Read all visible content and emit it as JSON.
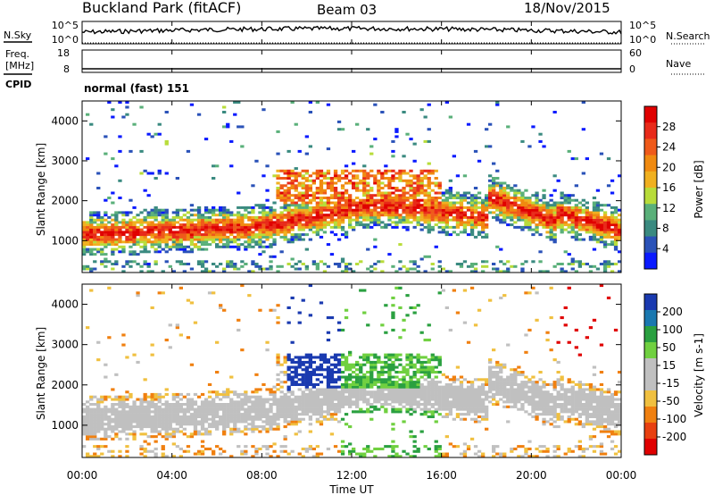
{
  "header": {
    "site": "Buckland Park (fitACF)",
    "beam": "Beam 03",
    "date": "18/Nov/2015"
  },
  "left_labels": {
    "nsky": "N.Sky",
    "freq_line1": "Freq.",
    "freq_line2": "[MHz]",
    "cpid": "CPID"
  },
  "right_labels": {
    "nsearch": "N.Search",
    "nave": "Nave"
  },
  "cpid_text": "normal (fast) 151",
  "colors": {
    "power_scale": [
      "#0a1aff",
      "#2a52b8",
      "#3a8a80",
      "#5ab07a",
      "#b8dc3a",
      "#f0b020",
      "#f08a10",
      "#ef5a1a",
      "#e82a1a",
      "#e00000"
    ],
    "velocity_scale": [
      "#1a3ab0",
      "#1a78b0",
      "#2aa040",
      "#70d040",
      "#c0c0c0",
      "#c0c0c0",
      "#f0c040",
      "#f08010",
      "#e84010",
      "#e00000"
    ]
  },
  "chart_data": [
    {
      "type": "line",
      "panel": "noise",
      "series": [
        {
          "name": "N.Sky"
        },
        {
          "name": "N.Search"
        }
      ],
      "left_ticks": [
        "10^5",
        "10^0"
      ],
      "right_ticks": [
        "10^5",
        "10^0"
      ]
    },
    {
      "type": "line",
      "panel": "frequency",
      "series": [
        {
          "name": "Freq."
        },
        {
          "name": "Nave"
        }
      ],
      "left_ticks": [
        "18",
        "8"
      ],
      "right_ticks": [
        "60",
        "0"
      ]
    },
    {
      "type": "heatmap",
      "panel": "power",
      "ylabel": "Slant Range [km]",
      "xlabel": "Time UT",
      "yticks": [
        "1000",
        "2000",
        "3000",
        "4000"
      ],
      "ylim": [
        200,
        4500
      ],
      "colorbar_label": "Power [dB]",
      "colorbar_ticks": [
        "4",
        "8",
        "12",
        "16",
        "20",
        "24",
        "28"
      ],
      "colorbar_range": [
        0,
        30
      ]
    },
    {
      "type": "heatmap",
      "panel": "velocity",
      "ylabel": "Slant Range [km]",
      "xlabel": "Time UT",
      "yticks": [
        "1000",
        "2000",
        "3000",
        "4000"
      ],
      "ylim": [
        200,
        4500
      ],
      "colorbar_label": "Velocity [m s-1]",
      "colorbar_ticks": [
        "200",
        "100",
        "50",
        "15",
        "-15",
        "-50",
        "-100",
        "-200"
      ]
    }
  ],
  "xaxis": {
    "label": "Time UT",
    "ticks": [
      "00:00",
      "04:00",
      "08:00",
      "12:00",
      "16:00",
      "20:00",
      "00:00"
    ]
  }
}
